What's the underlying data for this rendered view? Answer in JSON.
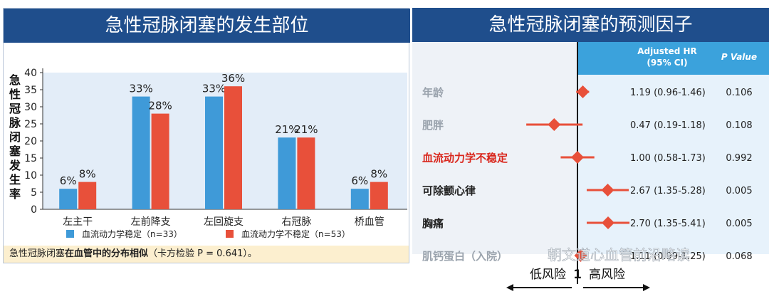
{
  "left": {
    "title": "急性冠脉闭塞的发生部位",
    "note_prefix": "急性冠脉闭塞",
    "note_bold": "在血管中的分布相似",
    "note_suffix": "（卡方检验 P = 0.641）。"
  },
  "right": {
    "title": "急性冠脉闭塞的预测因子"
  },
  "chart_data": [
    {
      "type": "bar",
      "ylabel": "急性冠脉闭塞发生率",
      "ylim": [
        0,
        40
      ],
      "yticks": [
        0,
        5,
        10,
        15,
        20,
        25,
        30,
        35,
        40
      ],
      "categories": [
        "左主干",
        "左前降支",
        "左回旋支",
        "右冠脉",
        "桥血管"
      ],
      "series": [
        {
          "name": "血流动力学稳定（n=33）",
          "color": "#3f9ad8",
          "values": [
            6,
            33,
            33,
            21,
            6
          ],
          "labels": [
            "6%",
            "33%",
            "33%",
            "21%",
            "6%"
          ]
        },
        {
          "name": "血流动力学不稳定（n=53）",
          "color": "#e8503a",
          "values": [
            8,
            28,
            36,
            21,
            8
          ],
          "labels": [
            "8%",
            "28%",
            "36%",
            "21%",
            "8%"
          ]
        }
      ],
      "legend_position": "bottom",
      "grid": false
    },
    {
      "type": "forest",
      "col_hr": "Adjusted HR\n(95% CI)",
      "col_p": "P Value",
      "reference_line": 1,
      "axis_label_center": "1",
      "axis_left_label": "低风险",
      "axis_right_label": "高风险",
      "marker_color": "#e8503a",
      "rows": [
        {
          "label": "年龄",
          "hr": 1.19,
          "lo": 0.96,
          "hi": 1.46,
          "hr_text": "1.19 (0.96-1.46)",
          "p": "0.106",
          "style": "muted"
        },
        {
          "label": "肥胖",
          "hr": 0.47,
          "lo": 0.19,
          "hi": 1.18,
          "hr_text": "0.47 (0.19-1.18)",
          "p": "0.108",
          "style": "muted"
        },
        {
          "label": "血流动力学不稳定",
          "hr": 1.0,
          "lo": 0.58,
          "hi": 1.73,
          "hr_text": "1.00 (0.58-1.73)",
          "p": "0.992",
          "style": "highlight"
        },
        {
          "label": "可除颤心律",
          "hr": 2.67,
          "lo": 1.35,
          "hi": 5.28,
          "hr_text": "2.67 (1.35-5.28)",
          "p": "0.005",
          "style": "bold"
        },
        {
          "label": "胸痛",
          "hr": 2.7,
          "lo": 1.35,
          "hi": 5.41,
          "hr_text": "2.70 (1.35-5.41)",
          "p": "0.005",
          "style": "bold"
        },
        {
          "label": "肌钙蛋白（入院）",
          "hr": 1.11,
          "lo": 0.99,
          "hi": 1.25,
          "hr_text": "1.11 (0.99-1.25)",
          "p": "0.068",
          "style": "muted"
        }
      ]
    }
  ],
  "watermark": "朝文道心血管前沿略读"
}
